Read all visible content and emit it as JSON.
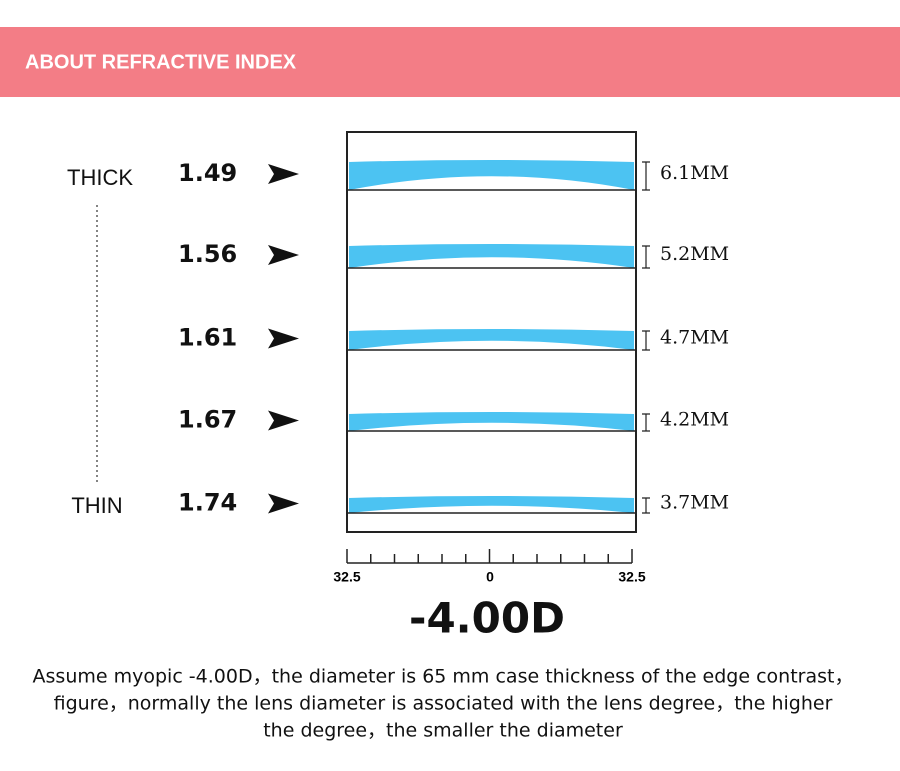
{
  "header": {
    "title": "ABOUT REFRACTIVE INDEX"
  },
  "scale_labels": {
    "thick": "THICK",
    "thin": "THIN"
  },
  "rows": [
    {
      "index": "1.49",
      "thickness": "6.1MM"
    },
    {
      "index": "1.56",
      "thickness": "5.2MM"
    },
    {
      "index": "1.61",
      "thickness": "4.7MM"
    },
    {
      "index": "1.67",
      "thickness": "4.2MM"
    },
    {
      "index": "1.74",
      "thickness": "3.7MM"
    }
  ],
  "ruler": {
    "left": "32.5",
    "center": "0",
    "right": "32.5"
  },
  "power": "-4.00D",
  "caption": [
    "Assume myopic -4.00D，the diameter is 65 mm case thickness of the edge contrast，",
    "figure，normally the lens diameter is associated with the lens degree，the higher",
    "the degree，the smaller the diameter"
  ]
}
